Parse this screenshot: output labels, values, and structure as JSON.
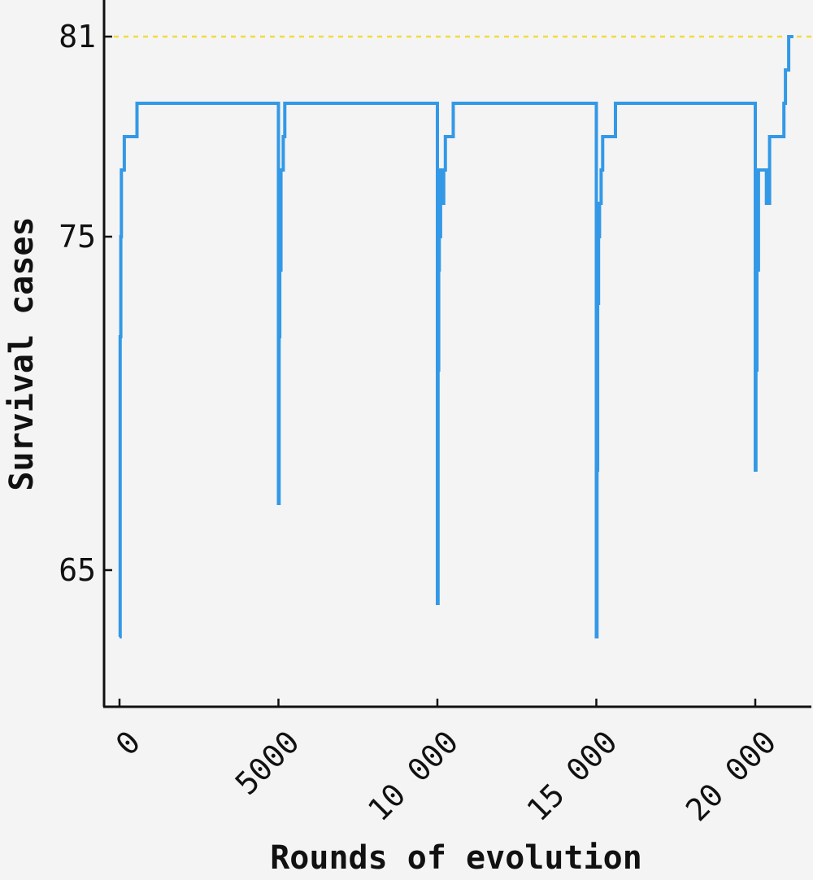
{
  "chart_data": {
    "type": "line",
    "title": "",
    "xlabel": "Rounds of evolution",
    "ylabel": "Survival cases",
    "xlim": [
      -500,
      21300
    ],
    "ylim": [
      61,
      82
    ],
    "xticks": [
      0,
      5000,
      10000,
      15000,
      20000
    ],
    "xtick_labels": [
      "0",
      "5000",
      "10 000",
      "15 000",
      "20 000"
    ],
    "yticks": [
      65,
      75,
      81
    ],
    "ytick_labels": [
      "65",
      "75",
      "81"
    ],
    "grid": false,
    "legend": "none",
    "reference_line": {
      "y": 81,
      "color": "#f0dc3c",
      "style": "dashed"
    },
    "series": [
      {
        "color": "#3399e6",
        "step": "post",
        "x": [
          0,
          20,
          40,
          60,
          100,
          150,
          550,
          5000,
          5020,
          5040,
          5060,
          5080,
          5100,
          5150,
          5200,
          5550,
          10000,
          10020,
          10040,
          10060,
          10100,
          10150,
          10200,
          10250,
          10500,
          15000,
          15020,
          15040,
          15070,
          15100,
          15150,
          15200,
          15600,
          20000,
          20020,
          20050,
          20100,
          20150,
          20350,
          20450,
          20900,
          20950,
          21050,
          21200
        ],
        "y": [
          63,
          72,
          75,
          77,
          77,
          78,
          79,
          67,
          72,
          75,
          74,
          77,
          77,
          78,
          79,
          79,
          64,
          71,
          74,
          75,
          77,
          76,
          77,
          78,
          79,
          63,
          68,
          73,
          75,
          76,
          77,
          78,
          79,
          68,
          71,
          74,
          77,
          77,
          76,
          78,
          79,
          80,
          81,
          81
        ]
      }
    ]
  }
}
